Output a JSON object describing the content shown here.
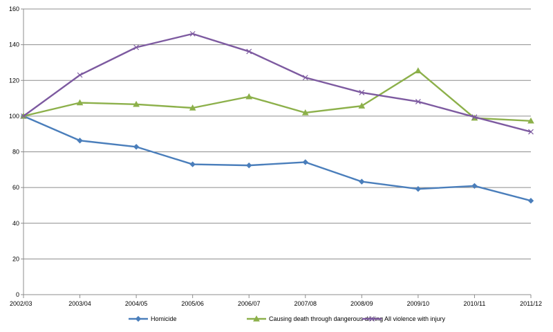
{
  "chart_data": {
    "type": "line",
    "categories": [
      "2002/03",
      "2003/04",
      "2004/05",
      "2005/06",
      "2006/07",
      "2007/08",
      "2008/09",
      "2009/10",
      "2010/11",
      "2011/12"
    ],
    "series": [
      {
        "name": "Homicide",
        "color": "#4a7ebb",
        "marker": "diamond",
        "values": [
          100,
          86.3,
          82.8,
          73.0,
          72.4,
          74.2,
          63.3,
          59.2,
          60.9,
          52.6
        ]
      },
      {
        "name": "Causing death through dangerous driving",
        "color": "#8cb04a",
        "marker": "triangle",
        "values": [
          100,
          107.5,
          106.6,
          104.6,
          110.9,
          101.9,
          105.7,
          125.4,
          98.9,
          97.3
        ]
      },
      {
        "name": "All violence with injury",
        "color": "#7d5aa0",
        "marker": "x",
        "values": [
          100,
          123.0,
          138.5,
          146.1,
          136.2,
          121.6,
          113.2,
          108.1,
          99.5,
          91.2
        ]
      }
    ],
    "ylim": [
      0,
      160
    ],
    "yticks": [
      0,
      20,
      40,
      60,
      80,
      100,
      120,
      140,
      160
    ],
    "grid": "horizontal",
    "legend_position": "bottom"
  }
}
